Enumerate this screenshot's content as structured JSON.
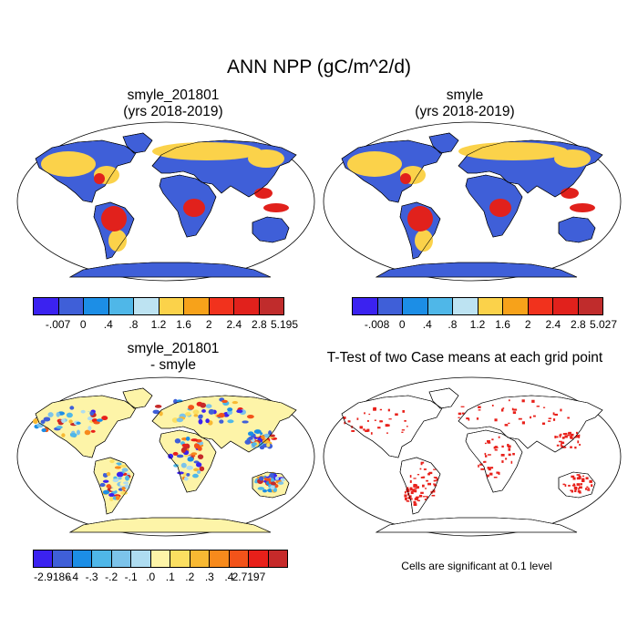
{
  "figure": {
    "title": "ANN NPP (gC/m^2/d)"
  },
  "panels": [
    {
      "title_line1": "smyle_201801",
      "title_line2": "(yrs 2018-2019)"
    },
    {
      "title_line1": "smyle",
      "title_line2": "(yrs 2018-2019)"
    },
    {
      "title_line1": "smyle_201801",
      "title_line2": "- smyle"
    },
    {
      "title_line1": "T-Test of two Case means at each grid point",
      "title_line2": ""
    }
  ],
  "colorbars": {
    "top_left": {
      "colors": [
        "#3b22f0",
        "#3f5fd8",
        "#1c8ee6",
        "#4fb7e8",
        "#bde3f2",
        "#fbd24a",
        "#f7a21a",
        "#f1321d",
        "#e1211c",
        "#c02c2c"
      ],
      "labels": [
        "-.007",
        "0",
        ".4",
        ".8",
        "1.2",
        "1.6",
        "2",
        "2.4",
        "2.8",
        "5.195"
      ]
    },
    "top_right": {
      "colors": [
        "#3b22f0",
        "#3f5fd8",
        "#1c8ee6",
        "#4fb7e8",
        "#bde3f2",
        "#fbd24a",
        "#f7a21a",
        "#f1321d",
        "#e1211c",
        "#c02c2c"
      ],
      "labels": [
        "-.008",
        "0",
        ".4",
        ".8",
        "1.2",
        "1.6",
        "2",
        "2.4",
        "2.8",
        "5.027"
      ]
    },
    "bottom_left": {
      "colors": [
        "#3b22f0",
        "#3f5fd8",
        "#1c8ee6",
        "#4fb7e8",
        "#7cc3ea",
        "#aedcf0",
        "#fdf4a8",
        "#fbdf61",
        "#f8b933",
        "#f78a1c",
        "#f3531a",
        "#e8201a",
        "#c62a2a"
      ],
      "labels": [
        "-2.9186",
        "-.4",
        "-.3",
        "-.2",
        "-.1",
        ".0",
        ".1",
        ".2",
        ".3",
        ".4",
        "2.7197"
      ]
    }
  },
  "map_colors": {
    "ocean": "#ffffff",
    "npp_low": "#3f5fd8",
    "npp_mid": "#fbd24a",
    "npp_high": "#e1211c",
    "diff_zero": "#fdf4a8",
    "signif": "#e8201a"
  },
  "note": "Cells are significant at 0.1 level"
}
